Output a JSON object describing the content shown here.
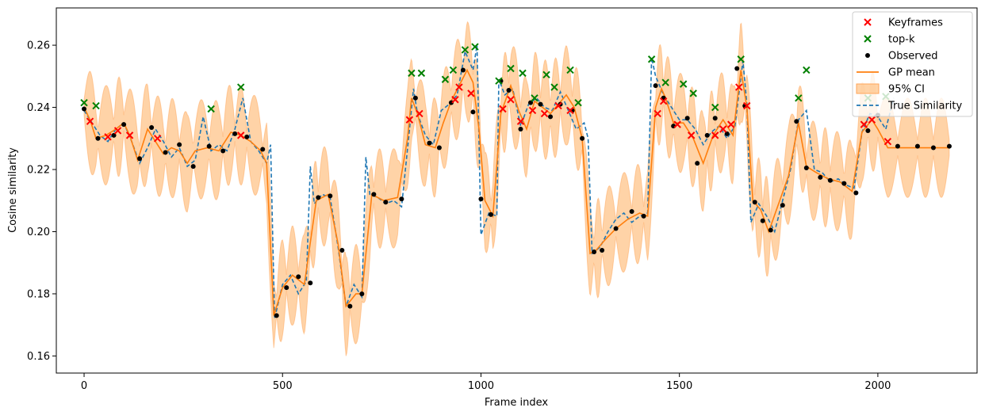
{
  "colors": {
    "keyframes": "#ff0000",
    "topk": "#008000",
    "observed": "#000000",
    "gp_mean": "#ff7f0e",
    "ci_fill": "#ffbb78",
    "true_similarity": "#1f77b4"
  },
  "chart_data": {
    "type": "line",
    "title": "",
    "xlabel": "Frame index",
    "ylabel": "Cosine similarity",
    "xlim": [
      -70,
      2250
    ],
    "ylim": [
      0.1545,
      0.272
    ],
    "grid": false,
    "legend_position": "top-right",
    "x_ticks": [
      0,
      500,
      1000,
      1500,
      2000
    ],
    "x_tick_labels": [
      "0",
      "500",
      "1000",
      "1500",
      "2000"
    ],
    "y_ticks": [
      0.16,
      0.18,
      0.2,
      0.22,
      0.24,
      0.26
    ],
    "y_tick_labels": [
      "0.16",
      "0.18",
      "0.20",
      "0.22",
      "0.24",
      "0.26"
    ],
    "legend": [
      {
        "label": "Keyframes",
        "marker": "x",
        "color": "#ff0000"
      },
      {
        "label": "top-k",
        "marker": "x",
        "color": "#008000"
      },
      {
        "label": "Observed",
        "marker": "dot",
        "color": "#000000"
      },
      {
        "label": "GP mean",
        "marker": "line",
        "color": "#ff7f0e"
      },
      {
        "label": "95% CI",
        "marker": "patch",
        "color": "#ffbb78"
      },
      {
        "label": "True Similarity",
        "marker": "dashed",
        "color": "#1f77b4"
      }
    ],
    "series": [
      {
        "name": "True Similarity",
        "style": "dashed",
        "x": [
          0,
          20,
          40,
          60,
          80,
          100,
          120,
          140,
          160,
          180,
          200,
          220,
          240,
          260,
          280,
          300,
          320,
          340,
          360,
          380,
          400,
          420,
          440,
          460,
          470,
          480,
          500,
          520,
          540,
          560,
          570,
          580,
          600,
          620,
          640,
          660,
          680,
          700,
          710,
          720,
          740,
          760,
          780,
          800,
          820,
          830,
          840,
          860,
          880,
          900,
          920,
          940,
          960,
          980,
          990,
          1000,
          1020,
          1040,
          1045,
          1060,
          1080,
          1100,
          1120,
          1140,
          1160,
          1180,
          1200,
          1220,
          1240,
          1260,
          1270,
          1280,
          1300,
          1320,
          1340,
          1360,
          1380,
          1400,
          1420,
          1430,
          1440,
          1460,
          1480,
          1500,
          1520,
          1540,
          1560,
          1580,
          1600,
          1620,
          1640,
          1660,
          1670,
          1680,
          1700,
          1720,
          1740,
          1760,
          1780,
          1800,
          1820,
          1840,
          1860,
          1880,
          1900,
          1920,
          1940,
          1960,
          1980,
          2000,
          2020,
          2040
        ],
        "values": [
          0.239,
          0.235,
          0.231,
          0.229,
          0.233,
          0.235,
          0.229,
          0.222,
          0.227,
          0.233,
          0.229,
          0.224,
          0.227,
          0.221,
          0.223,
          0.237,
          0.226,
          0.228,
          0.226,
          0.233,
          0.243,
          0.229,
          0.226,
          0.222,
          0.228,
          0.172,
          0.183,
          0.186,
          0.18,
          0.184,
          0.221,
          0.209,
          0.212,
          0.211,
          0.195,
          0.176,
          0.183,
          0.179,
          0.224,
          0.212,
          0.211,
          0.209,
          0.21,
          0.208,
          0.233,
          0.246,
          0.238,
          0.231,
          0.228,
          0.239,
          0.241,
          0.244,
          0.258,
          0.252,
          0.26,
          0.199,
          0.206,
          0.205,
          0.249,
          0.244,
          0.246,
          0.234,
          0.241,
          0.243,
          0.24,
          0.239,
          0.245,
          0.239,
          0.233,
          0.235,
          0.23,
          0.193,
          0.195,
          0.2,
          0.204,
          0.206,
          0.203,
          0.205,
          0.206,
          0.256,
          0.25,
          0.244,
          0.24,
          0.236,
          0.236,
          0.233,
          0.228,
          0.232,
          0.234,
          0.23,
          0.234,
          0.255,
          0.241,
          0.203,
          0.209,
          0.205,
          0.2,
          0.21,
          0.22,
          0.236,
          0.239,
          0.22,
          0.219,
          0.216,
          0.217,
          0.215,
          0.214,
          0.232,
          0.238,
          0.237,
          0.233,
          0.243
        ]
      },
      {
        "name": "GP mean",
        "style": "solid",
        "x": [
          0,
          15,
          30,
          55,
          80,
          100,
          115,
          135,
          160,
          180,
          200,
          220,
          240,
          260,
          280,
          310,
          340,
          370,
          395,
          420,
          445,
          460,
          478,
          500,
          525,
          555,
          585,
          615,
          640,
          660,
          685,
          700,
          725,
          755,
          790,
          815,
          825,
          840,
          860,
          885,
          905,
          925,
          945,
          965,
          980,
          995,
          1010,
          1030,
          1050,
          1075,
          1095,
          1115,
          1135,
          1155,
          1175,
          1195,
          1215,
          1235,
          1255,
          1275,
          1290,
          1310,
          1340,
          1370,
          1400,
          1420,
          1440,
          1455,
          1465,
          1485,
          1510,
          1535,
          1560,
          1585,
          1610,
          1635,
          1655,
          1670,
          1685,
          1705,
          1725,
          1750,
          1775,
          1800,
          1820,
          1845,
          1875,
          1905,
          1935,
          1960,
          1985,
          2000,
          2025,
          2060,
          2100,
          2140,
          2180
        ],
        "values": [
          0.24,
          0.236,
          0.23,
          0.231,
          0.233,
          0.235,
          0.231,
          0.223,
          0.233,
          0.229,
          0.225,
          0.227,
          0.226,
          0.222,
          0.226,
          0.227,
          0.226,
          0.232,
          0.231,
          0.229,
          0.226,
          0.222,
          0.173,
          0.182,
          0.186,
          0.183,
          0.21,
          0.212,
          0.196,
          0.176,
          0.18,
          0.18,
          0.212,
          0.21,
          0.211,
          0.23,
          0.243,
          0.238,
          0.228,
          0.227,
          0.235,
          0.242,
          0.247,
          0.252,
          0.248,
          0.233,
          0.21,
          0.205,
          0.238,
          0.247,
          0.239,
          0.233,
          0.242,
          0.24,
          0.238,
          0.241,
          0.244,
          0.24,
          0.23,
          0.193,
          0.194,
          0.197,
          0.201,
          0.204,
          0.206,
          0.205,
          0.24,
          0.246,
          0.243,
          0.235,
          0.235,
          0.23,
          0.222,
          0.231,
          0.236,
          0.231,
          0.252,
          0.24,
          0.21,
          0.207,
          0.2,
          0.209,
          0.218,
          0.235,
          0.221,
          0.219,
          0.217,
          0.216,
          0.213,
          0.232,
          0.236,
          0.233,
          0.227,
          0.227,
          0.227,
          0.227,
          0.227
        ]
      },
      {
        "name": "Observed",
        "style": "points",
        "x": [
          0,
          35,
          75,
          100,
          140,
          170,
          205,
          240,
          275,
          315,
          350,
          380,
          410,
          450,
          485,
          510,
          540,
          570,
          590,
          620,
          650,
          670,
          700,
          730,
          760,
          800,
          835,
          870,
          895,
          925,
          955,
          980,
          1000,
          1025,
          1050,
          1070,
          1100,
          1125,
          1150,
          1175,
          1200,
          1230,
          1255,
          1285,
          1305,
          1340,
          1380,
          1410,
          1440,
          1460,
          1485,
          1520,
          1545,
          1570,
          1590,
          1620,
          1645,
          1665,
          1690,
          1710,
          1730,
          1760,
          1795,
          1820,
          1855,
          1880,
          1915,
          1945,
          1975,
          2000,
          2050,
          2100,
          2140,
          2180
        ],
        "values": [
          0.2395,
          0.23,
          0.231,
          0.2345,
          0.2235,
          0.2335,
          0.2255,
          0.228,
          0.221,
          0.2275,
          0.226,
          0.2315,
          0.2305,
          0.2265,
          0.173,
          0.182,
          0.1855,
          0.1835,
          0.211,
          0.2115,
          0.194,
          0.176,
          0.18,
          0.212,
          0.2095,
          0.2105,
          0.243,
          0.2285,
          0.227,
          0.2415,
          0.252,
          0.2385,
          0.2105,
          0.2055,
          0.2485,
          0.2455,
          0.233,
          0.2415,
          0.241,
          0.237,
          0.241,
          0.239,
          0.23,
          0.1935,
          0.194,
          0.201,
          0.2065,
          0.205,
          0.247,
          0.243,
          0.234,
          0.2365,
          0.222,
          0.231,
          0.2365,
          0.2315,
          0.2525,
          0.2405,
          0.2095,
          0.2035,
          0.2005,
          0.2085,
          0.2355,
          0.2205,
          0.2175,
          0.2165,
          0.2155,
          0.2125,
          0.2325,
          0.2375,
          0.2275,
          0.2275,
          0.227,
          0.2275
        ]
      },
      {
        "name": "Keyframes",
        "style": "x",
        "x": [
          15,
          60,
          85,
          115,
          185,
          395,
          820,
          845,
          935,
          945,
          975,
          1055,
          1075,
          1100,
          1130,
          1160,
          1195,
          1225,
          1445,
          1460,
          1495,
          1530,
          1590,
          1610,
          1630,
          1650,
          1670,
          1965,
          1985,
          2025
        ],
        "values": [
          0.2355,
          0.2305,
          0.2325,
          0.231,
          0.23,
          0.231,
          0.236,
          0.238,
          0.2425,
          0.2465,
          0.2445,
          0.2395,
          0.2425,
          0.2355,
          0.239,
          0.238,
          0.2405,
          0.239,
          0.238,
          0.242,
          0.2345,
          0.231,
          0.231,
          0.233,
          0.2345,
          0.2465,
          0.2405,
          0.2345,
          0.236,
          0.229
        ]
      },
      {
        "name": "top-k",
        "style": "x",
        "x": [
          0,
          30,
          320,
          395,
          825,
          850,
          910,
          930,
          960,
          985,
          1045,
          1075,
          1105,
          1135,
          1165,
          1185,
          1225,
          1245,
          1430,
          1465,
          1510,
          1535,
          1590,
          1655,
          1800,
          1820,
          1975,
          2020
        ],
        "values": [
          0.2415,
          0.2405,
          0.2395,
          0.2465,
          0.251,
          0.251,
          0.249,
          0.252,
          0.2585,
          0.2595,
          0.2485,
          0.2525,
          0.251,
          0.243,
          0.2505,
          0.2465,
          0.252,
          0.2415,
          0.2555,
          0.248,
          0.2475,
          0.2445,
          0.24,
          0.2555,
          0.243,
          0.252,
          0.243,
          0.2435
        ]
      }
    ]
  }
}
